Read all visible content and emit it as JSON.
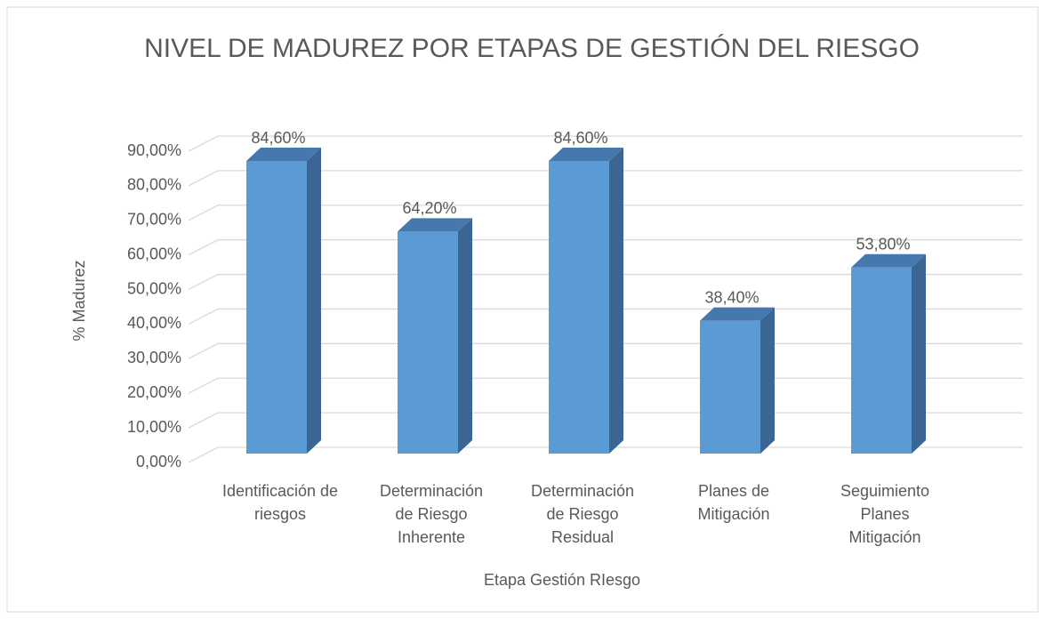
{
  "chart_data": {
    "type": "bar3d",
    "title": "NIVEL DE MADUREZ POR ETAPAS DE GESTIÓN DEL RIESGO",
    "x_label": "Etapa Gestión RIesgo",
    "y_label": "% Madurez",
    "categories": [
      "Identificación de\nriesgos",
      "Determinación\nde Riesgo\nInherente",
      "Determinación\nde Riesgo\nResidual",
      "Planes de\nMitigación",
      "Seguimiento\nPlanes\nMitigación"
    ],
    "values": [
      84.6,
      64.2,
      84.6,
      38.4,
      53.8
    ],
    "value_labels": [
      "84,60%",
      "64,20%",
      "84,60%",
      "38,40%",
      "53,80%"
    ],
    "color": "#5b9bd5",
    "ylim": [
      0,
      90
    ],
    "yticks": [
      {
        "value": 0,
        "label": "0,00%"
      },
      {
        "value": 10,
        "label": "10,00%"
      },
      {
        "value": 20,
        "label": "20,00%"
      },
      {
        "value": 30,
        "label": "30,00%"
      },
      {
        "value": 40,
        "label": "40,00%"
      },
      {
        "value": 50,
        "label": "50,00%"
      },
      {
        "value": 60,
        "label": "60,00%"
      },
      {
        "value": 70,
        "label": "70,00%"
      },
      {
        "value": 80,
        "label": "80,00%"
      },
      {
        "value": 90,
        "label": "90,00%"
      }
    ],
    "grid": true
  }
}
